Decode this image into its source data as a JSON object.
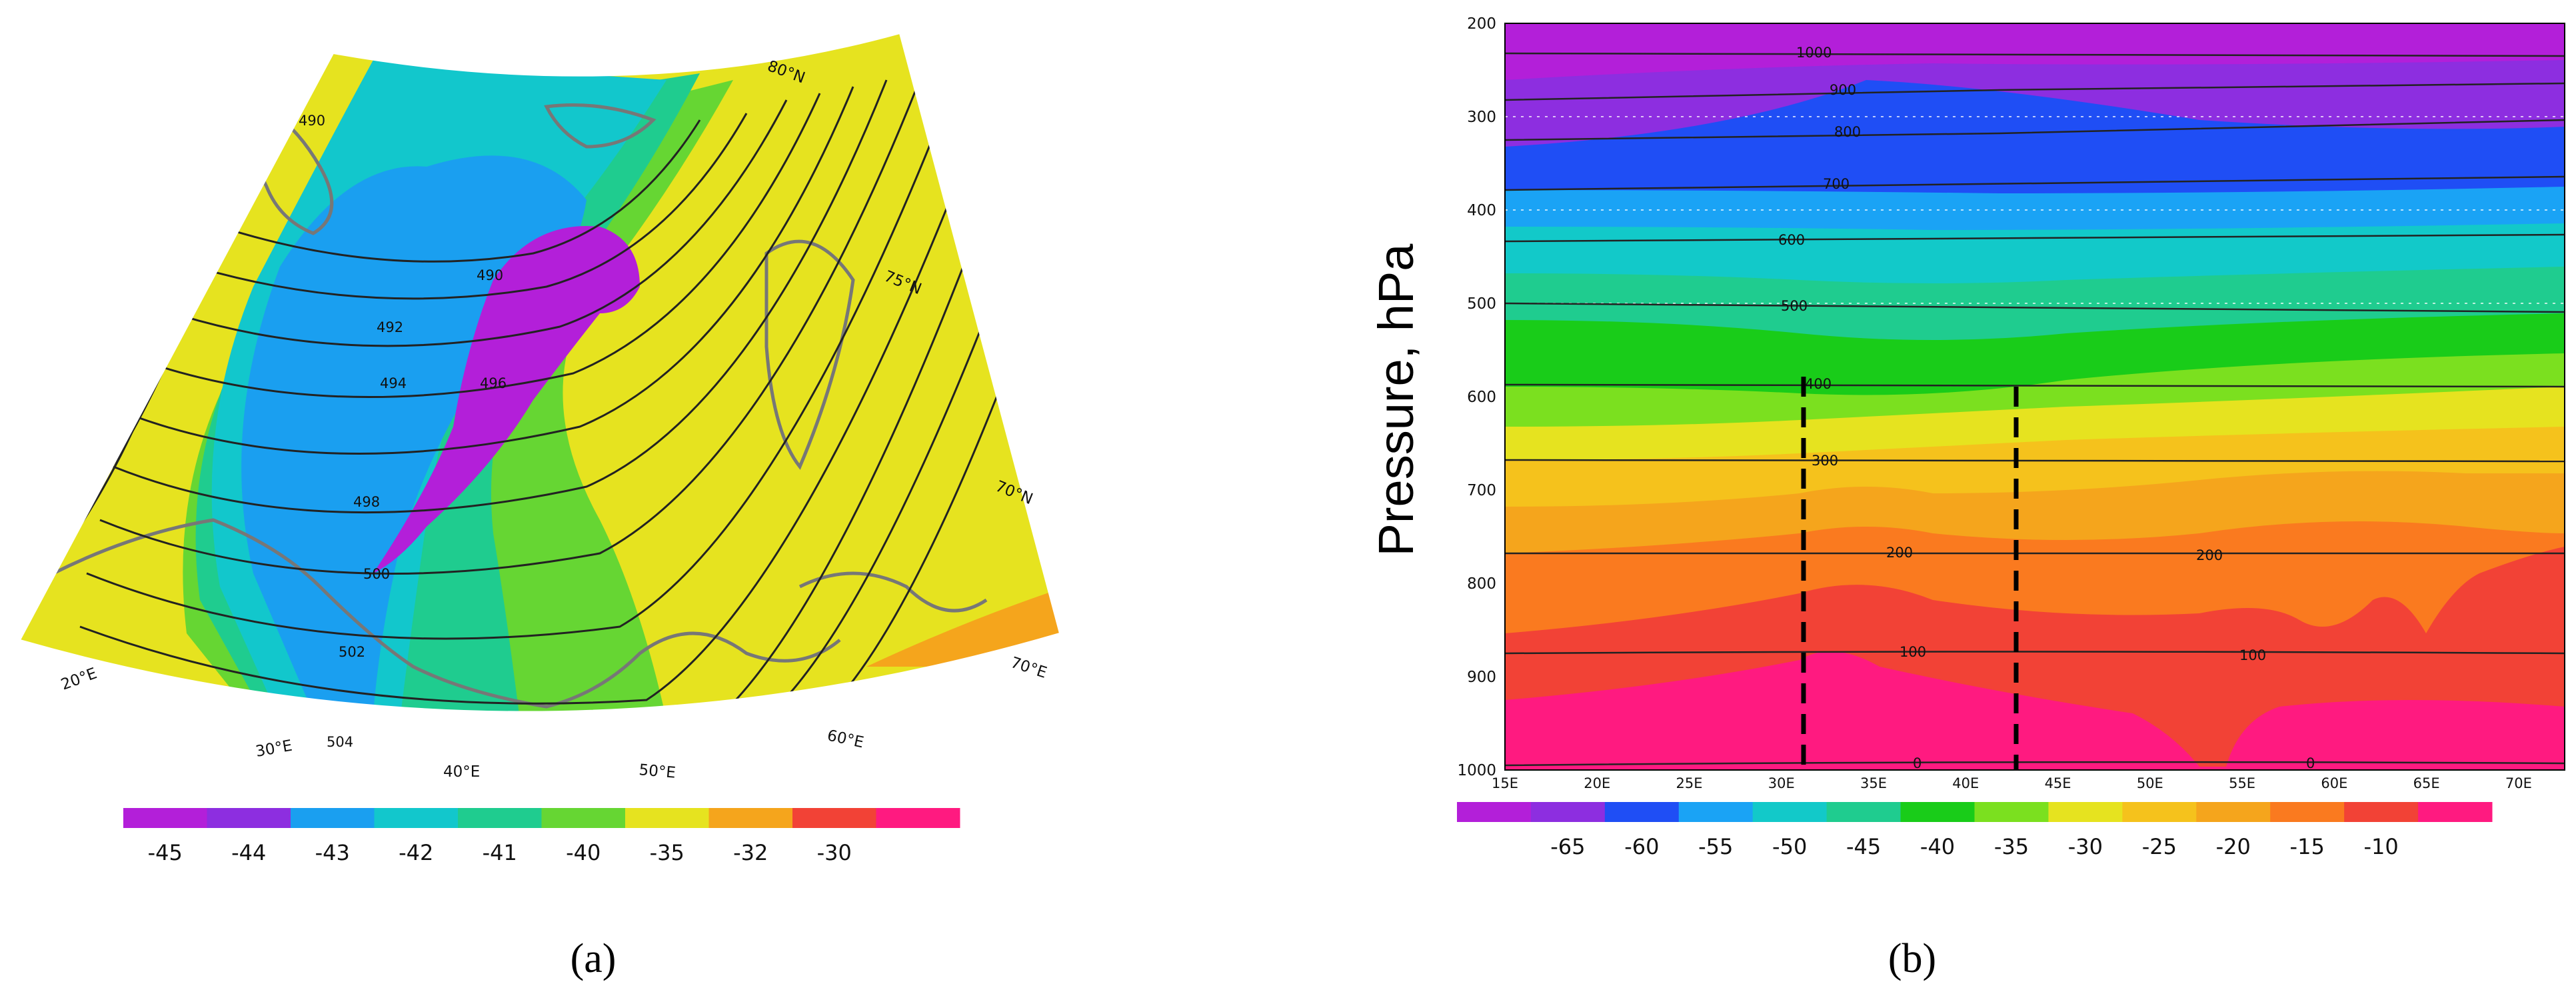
{
  "panel_a": {
    "label": "(a)",
    "lon_labels": [
      "20°E",
      "30°E",
      "40°E",
      "50°E",
      "60°E",
      "70°E"
    ],
    "lat_labels": [
      "80°N",
      "75°N",
      "70°N"
    ],
    "contour_labels": [
      "490",
      "490",
      "492",
      "494",
      "496",
      "498",
      "500",
      "502",
      "504"
    ],
    "colorbar": {
      "colors": [
        "#b31fd9",
        "#8d2ee0",
        "#1a9ff0",
        "#12c7cc",
        "#1fcc8f",
        "#66d633",
        "#e6e31f",
        "#f5a51c",
        "#f24236",
        "#ff1a80"
      ],
      "labels": [
        "-45",
        "-44",
        "-43",
        "-42",
        "-41",
        "-40",
        "-35",
        "-32",
        "-30"
      ]
    }
  },
  "panel_b": {
    "label": "(b)",
    "y_axis_title": "Pressure, hPa",
    "y_ticks": [
      "200",
      "300",
      "400",
      "500",
      "600",
      "700",
      "800",
      "900",
      "1000"
    ],
    "x_ticks": [
      "15E",
      "20E",
      "25E",
      "30E",
      "35E",
      "40E",
      "45E",
      "50E",
      "55E",
      "60E",
      "65E",
      "70E"
    ],
    "contour_labels": [
      "1000",
      "900",
      "800",
      "700",
      "600",
      "500",
      "400",
      "300",
      "200",
      "200",
      "100",
      "100",
      "0",
      "0"
    ],
    "colorbar": {
      "colors": [
        "#b31fd9",
        "#8d2ee0",
        "#1f4ef5",
        "#1aa3f5",
        "#12c9c9",
        "#1fcc8f",
        "#19cc19",
        "#7be01f",
        "#e6e31f",
        "#f5c21c",
        "#f5a51c",
        "#fa7a1f",
        "#f24236",
        "#ff1a80"
      ],
      "labels": [
        "-65",
        "-60",
        "-55",
        "-50",
        "-45",
        "-40",
        "-35",
        "-30",
        "-25",
        "-20",
        "-15",
        "-10"
      ]
    }
  }
}
